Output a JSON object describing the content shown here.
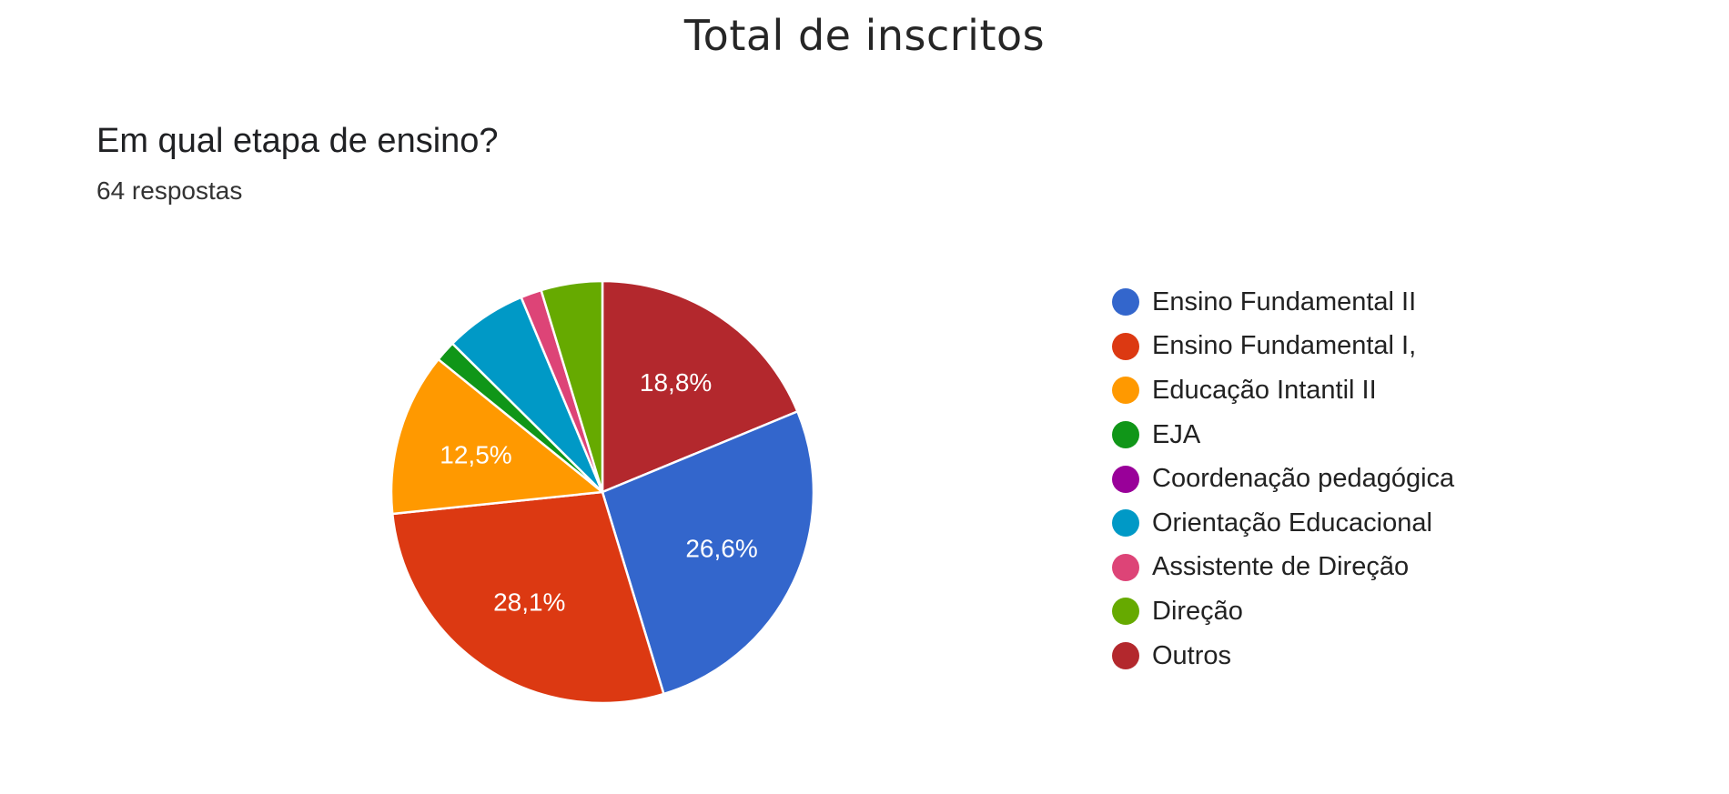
{
  "page": {
    "title": "Total de inscritos"
  },
  "form": {
    "question": "Em qual etapa de ensino?",
    "responses": "64 respostas"
  },
  "chart_data": {
    "type": "pie",
    "title": "Em qual etapa de ensino?",
    "subtitle": "64 respostas",
    "legend_position": "right",
    "start_angle_deg": 90,
    "direction": "clockwise",
    "slices": [
      {
        "label": "Outros",
        "value": 18.8,
        "display": "18,8%",
        "color": "#B3282D"
      },
      {
        "label": "Ensino Fundamental II",
        "value": 26.6,
        "display": "26,6%",
        "color": "#3366CC"
      },
      {
        "label": "Ensino Fundamental I,",
        "value": 28.1,
        "display": "28,1%",
        "color": "#DC3912"
      },
      {
        "label": "Educação Intantil II",
        "value": 12.5,
        "display": "12,5%",
        "color": "#FF9900"
      },
      {
        "label": "EJA",
        "value": 1.6,
        "display": "",
        "color": "#109618"
      },
      {
        "label": "Coordenação pedagógica",
        "value": 0,
        "display": "",
        "color": "#990099"
      },
      {
        "label": "Orientação Educacional",
        "value": 6.3,
        "display": "",
        "color": "#0099C6"
      },
      {
        "label": "Assistente de Direção",
        "value": 1.6,
        "display": "",
        "color": "#DD4477"
      },
      {
        "label": "Direção",
        "value": 4.7,
        "display": "",
        "color": "#66AA00"
      }
    ],
    "legend": [
      {
        "label": "Ensino Fundamental II",
        "color": "#3366CC"
      },
      {
        "label": "Ensino Fundamental I,",
        "color": "#DC3912"
      },
      {
        "label": "Educação Intantil II",
        "color": "#FF9900"
      },
      {
        "label": "EJA",
        "color": "#109618"
      },
      {
        "label": "Coordenação pedagógica",
        "color": "#990099"
      },
      {
        "label": "Orientação Educacional",
        "color": "#0099C6"
      },
      {
        "label": "Assistente de Direção",
        "color": "#DD4477"
      },
      {
        "label": "Direção",
        "color": "#66AA00"
      },
      {
        "label": "Outros",
        "color": "#B3282D"
      }
    ]
  }
}
